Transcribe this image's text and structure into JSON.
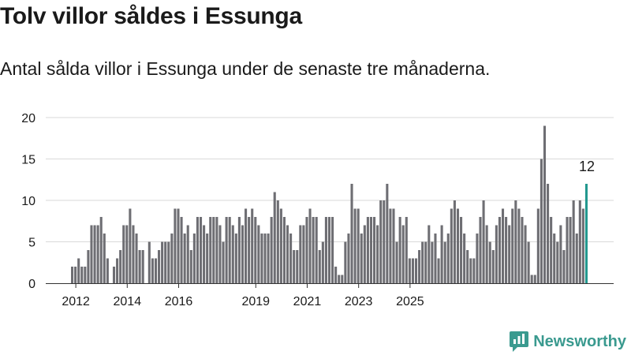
{
  "title": "Tolv villor såldes i Essunga",
  "subtitle": "Antal sålda villor i Essunga under de senaste tre månaderna.",
  "logo_text": "Newsworthy",
  "colors": {
    "bar": "#6e6e73",
    "highlight": "#23988f",
    "grid": "#d9d9d9",
    "axis": "#333333"
  },
  "chart_data": {
    "type": "bar",
    "title": "Tolv villor såldes i Essunga",
    "subtitle": "Antal sålda villor i Essunga under de senaste tre månaderna.",
    "xlabel": "",
    "ylabel": "",
    "ylim": [
      0,
      20
    ],
    "yticks": [
      0,
      5,
      10,
      15,
      20
    ],
    "x_ticks": [
      "2012",
      "2014",
      "2016",
      "2019",
      "2021",
      "2023",
      "2025"
    ],
    "x_tick_indices": [
      1,
      17,
      33,
      57,
      73,
      89,
      105
    ],
    "highlight_label": "12",
    "grid": true,
    "values": [
      2,
      2,
      3,
      2,
      2,
      4,
      7,
      7,
      7,
      8,
      6,
      3,
      0,
      2,
      3,
      4,
      7,
      7,
      9,
      7,
      6,
      4,
      4,
      0,
      5,
      3,
      3,
      4,
      5,
      5,
      5,
      6,
      9,
      9,
      8,
      6,
      7,
      4,
      6,
      8,
      8,
      7,
      6,
      8,
      8,
      8,
      7,
      5,
      8,
      8,
      7,
      6,
      8,
      7,
      9,
      8,
      9,
      8,
      7,
      6,
      6,
      6,
      8,
      11,
      10,
      9,
      8,
      7,
      6,
      4,
      4,
      7,
      7,
      8,
      9,
      8,
      8,
      4,
      5,
      8,
      8,
      8,
      2,
      1,
      1,
      5,
      6,
      12,
      9,
      9,
      6,
      7,
      8,
      8,
      8,
      7,
      10,
      10,
      12,
      9,
      9,
      5,
      8,
      7,
      8,
      3,
      3,
      3,
      4,
      5,
      5,
      7,
      5,
      6,
      3,
      7,
      5,
      6,
      9,
      10,
      9,
      8,
      6,
      4,
      3,
      3,
      6,
      8,
      10,
      7,
      5,
      4,
      7,
      8,
      9,
      8,
      7,
      9,
      10,
      9,
      8,
      7,
      5,
      1,
      1,
      9,
      15,
      19,
      12,
      8,
      6,
      5,
      7,
      4,
      8,
      8,
      10,
      6,
      10,
      9,
      12
    ]
  }
}
